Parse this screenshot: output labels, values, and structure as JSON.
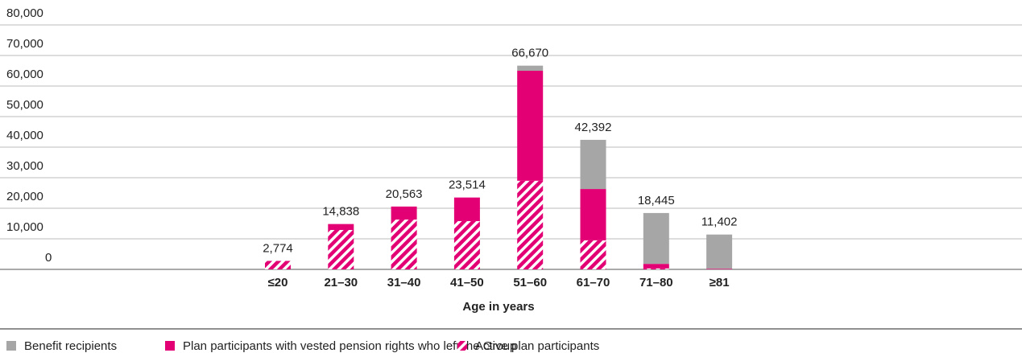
{
  "chart_data": {
    "type": "stacked_bar",
    "x_label": "Age in years",
    "categories": [
      "≤20",
      "21–30",
      "31–40",
      "41–50",
      "51–60",
      "61–70",
      "71–80",
      "≥81"
    ],
    "series": [
      {
        "name": "Benefit recipients",
        "color": "#a6a6a6",
        "hatch": false,
        "values": [
          0,
          0,
          0,
          0,
          1670,
          16092,
          16645,
          11202
        ]
      },
      {
        "name": "Plan participants with vested pension rights who left the Group",
        "color": "#e20074",
        "hatch": false,
        "values": [
          0,
          1938,
          4263,
          7714,
          36000,
          16800,
          1500,
          200
        ]
      },
      {
        "name": "Active plan participants",
        "color": "#e20074",
        "hatch": true,
        "values": [
          2774,
          12900,
          16300,
          15800,
          29000,
          9500,
          300,
          0
        ]
      }
    ],
    "totals": {
      "values": [
        2774,
        14838,
        20563,
        23514,
        66670,
        42392,
        18445,
        11402
      ],
      "value_labels": [
        "2,774",
        "14,838",
        "20,563",
        "23,514",
        "66,670",
        "42,392",
        "18,445",
        "11,402"
      ]
    },
    "ylim": [
      0,
      80000
    ],
    "yticks": [
      0,
      {
        "value": 10000,
        "label": "10,000"
      },
      {
        "value": 20000,
        "label": "20,000"
      },
      {
        "value": 30000,
        "label": "30,000"
      },
      {
        "value": 40000,
        "label": "40,000"
      },
      {
        "value": 50000,
        "label": "50,000"
      },
      {
        "value": 60000,
        "label": "60,000"
      },
      {
        "value": 70000,
        "label": "70,000"
      },
      {
        "value": 80000,
        "label": "80,000"
      }
    ],
    "grid": true,
    "legend": "bottom-left"
  }
}
